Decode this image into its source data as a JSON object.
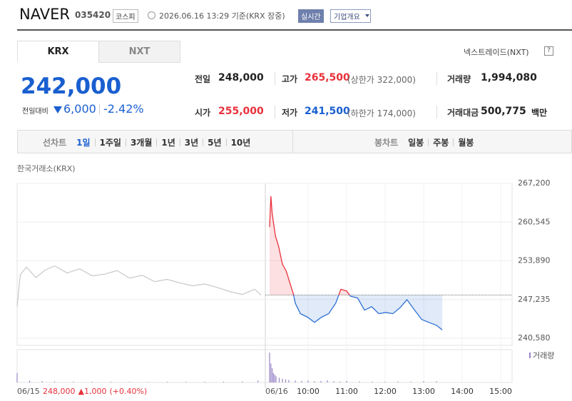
{
  "header": {
    "name": "NAVER",
    "code": "035420",
    "market": "코스피",
    "datetime": "2026.06.16 13:29",
    "basis": "기준(KRX 장중)",
    "realtime": "실시간",
    "company_info": "기업개요"
  },
  "tabs": [
    "KRX",
    "NXT"
  ],
  "nxt_link": "넥스트레이드(NXT)",
  "help": "?",
  "price": {
    "current": "242,000",
    "change_label": "전일대비",
    "change": "6,000",
    "change_rate": "-2.42%"
  },
  "stats": [
    {
      "label": "전일",
      "value": "248,000"
    },
    {
      "label": "고가",
      "value": "265,500",
      "note": "(상한가 322,000)"
    },
    {
      "label": "거래량",
      "value": "1,994,080"
    },
    {
      "label": "시가",
      "value": "255,000"
    },
    {
      "label": "저가",
      "value": "241,500",
      "note": "(하한가 174,000)"
    },
    {
      "label": "거래대금",
      "value": "500,775",
      "unit": "백만"
    }
  ],
  "periods": {
    "line_label": "선차트",
    "line": [
      "1일",
      "1주일",
      "3개월",
      "1년",
      "3년",
      "5년",
      "10년"
    ],
    "candle_label": "봉차트",
    "candle": [
      "일봉",
      "주봉",
      "월봉"
    ]
  },
  "chart": {
    "type": "line",
    "source": "한국거래소(KRX)",
    "baseline": 248000,
    "ylim": [
      240580,
      267200
    ],
    "yticks": [
      {
        "value": 267200,
        "label": "267,200"
      },
      {
        "value": 260545,
        "label": "260,545"
      },
      {
        "value": 253890,
        "label": "253,890"
      },
      {
        "value": 247235,
        "label": "247,235"
      },
      {
        "value": 240580,
        "label": "240,580"
      }
    ],
    "xticks": [
      {
        "value": 60,
        "label": "10:00"
      },
      {
        "value": 120,
        "label": "11:00"
      },
      {
        "value": 180,
        "label": "12:00"
      },
      {
        "value": 240,
        "label": "13:00"
      },
      {
        "value": 300,
        "label": "14:00"
      },
      {
        "value": 360,
        "label": "15:00"
      }
    ],
    "prev_day": {
      "label": "06/15",
      "close": "248,000",
      "change": "▲1,000",
      "change_rate": "(+0.40%)",
      "color": "#c8c8c8",
      "x": [
        0,
        5,
        15,
        30,
        45,
        60,
        80,
        100,
        120,
        140,
        160,
        180,
        200,
        220,
        240,
        260,
        280,
        300,
        320,
        340,
        360,
        380,
        390
      ],
      "values": [
        246000,
        251500,
        252800,
        251000,
        252300,
        253000,
        251800,
        252500,
        251300,
        251600,
        252200,
        250900,
        251400,
        250300,
        250700,
        250100,
        249600,
        249900,
        249300,
        248600,
        248100,
        249000,
        248000
      ]
    },
    "today": {
      "label": "06/16",
      "up_color": "#e8323c",
      "down_color": "#2f6fd6",
      "x": [
        0,
        2,
        4,
        9,
        14,
        20,
        26,
        31,
        37,
        40,
        48,
        59,
        70,
        81,
        92,
        103,
        111,
        120,
        126,
        137,
        148,
        159,
        170,
        181,
        192,
        203,
        214,
        226,
        237,
        248,
        260,
        269
      ],
      "values": [
        259700,
        265000,
        262000,
        258200,
        256400,
        253300,
        252100,
        250300,
        248200,
        246600,
        244800,
        244200,
        243300,
        244200,
        244800,
        246600,
        249000,
        248700,
        247800,
        247500,
        245400,
        246000,
        244800,
        245000,
        244800,
        245800,
        247200,
        245400,
        243800,
        243300,
        242800,
        242000
      ]
    },
    "volume_label": "거래량",
    "volume_color": "#9a86c8",
    "volume_ylim": [
      0,
      100000
    ],
    "prev_volume": {
      "x": [
        0,
        20,
        40,
        60,
        90,
        120,
        150,
        180,
        210,
        240,
        270,
        300,
        330,
        360,
        385
      ],
      "values": [
        30000,
        6000,
        4000,
        3000,
        2500,
        2000,
        2000,
        1500,
        1500,
        2000,
        1500,
        2000,
        2500,
        3000,
        6000
      ]
    },
    "today_volume": {
      "x": [
        0,
        2,
        4,
        6,
        8,
        10,
        15,
        20,
        25,
        30,
        40,
        50,
        60,
        70,
        80,
        90,
        100,
        110,
        120,
        140,
        160,
        180,
        200,
        220,
        240,
        260
      ],
      "values": [
        95000,
        60000,
        45000,
        30000,
        25000,
        20000,
        15000,
        12000,
        10000,
        8000,
        6000,
        5000,
        6000,
        4000,
        5000,
        7000,
        4000,
        3000,
        5000,
        3000,
        2500,
        2000,
        3000,
        2500,
        4000,
        3500
      ]
    }
  }
}
